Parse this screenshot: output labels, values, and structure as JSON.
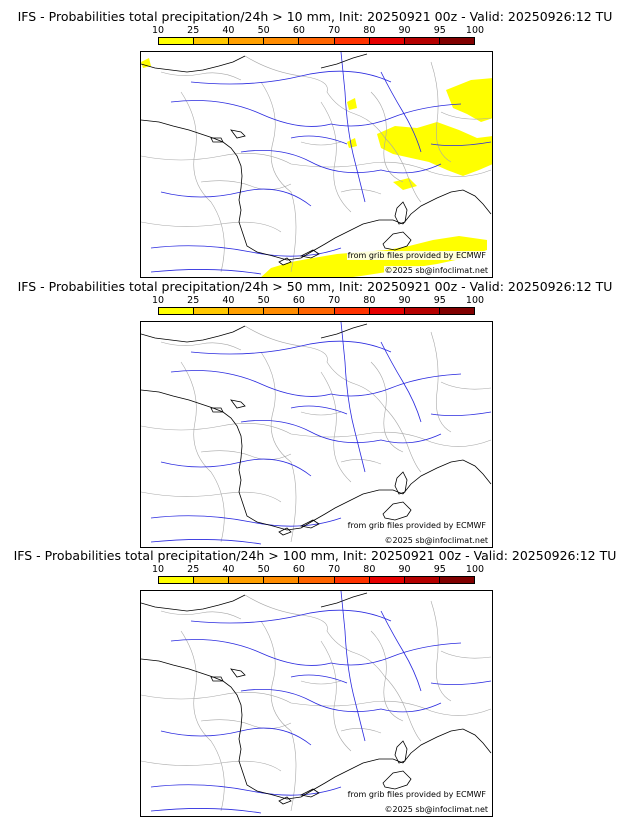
{
  "legend": {
    "ticks": [
      "10",
      "25",
      "40",
      "50",
      "60",
      "70",
      "80",
      "90",
      "95",
      "100"
    ],
    "colors": [
      "#ffff00",
      "#ffc800",
      "#ffa000",
      "#ff8c00",
      "#ff6400",
      "#ff3200",
      "#e60000",
      "#b40000",
      "#800000"
    ]
  },
  "panels": [
    {
      "title": "IFS - Probabilities total precipitation/24h > 10 mm, Init: 20250921 00z - Valid: 20250926:12 TU",
      "credit": "from grib files provided by ECMWF",
      "copyright": "©2025 sb@infoclimat.net",
      "has_precip": true
    },
    {
      "title": "IFS - Probabilities total precipitation/24h > 50 mm, Init: 20250921 00z - Valid: 20250926:12 TU",
      "credit": "from grib files provided by ECMWF",
      "copyright": "©2025 sb@infoclimat.net",
      "has_precip": false
    },
    {
      "title": "IFS - Probabilities total precipitation/24h > 100 mm, Init: 20250921 00z - Valid: 20250926:12 TU",
      "credit": "from grib files provided by ECMWF",
      "copyright": "©2025 sb@infoclimat.net",
      "has_precip": false
    }
  ],
  "colors": {
    "precip": "#ffff00",
    "coast": "#000000",
    "rivers": "#2a2adf",
    "borders": "#a8a8a8"
  }
}
